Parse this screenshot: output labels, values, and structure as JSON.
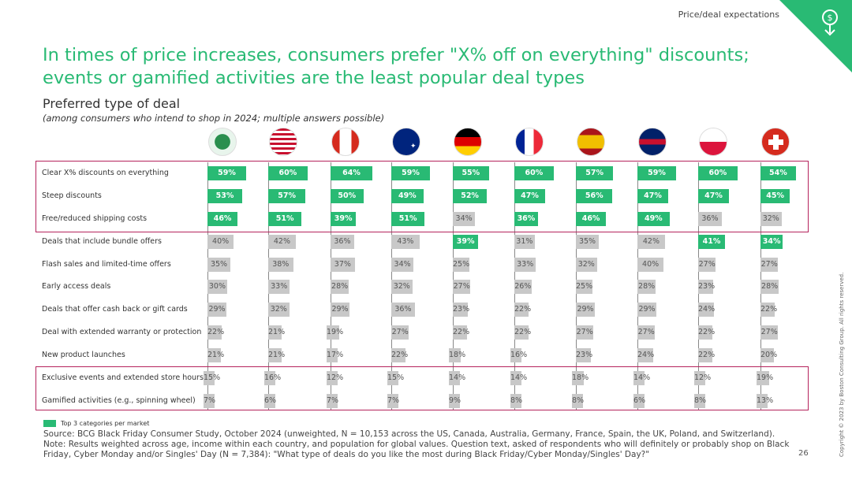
{
  "header": {
    "section": "Price/deal expectations",
    "icon": "dollar-tag-icon"
  },
  "title": "In times of price increases, consumers prefer \"X% off on everything\" discounts; events or gamified activities are the least popular deal types",
  "subtitle": "Preferred type of deal",
  "subnote": "(among consumers who intend to shop in 2024; multiple answers possible)",
  "colors": {
    "accent": "#29ba74",
    "neutral": "#c8c8c8",
    "box": "#b5235c"
  },
  "chart_data": {
    "type": "table",
    "markets": [
      "Global",
      "US",
      "Canada",
      "Australia",
      "Germany",
      "France",
      "Spain",
      "UK",
      "Poland",
      "Switzerland"
    ],
    "categories": [
      "Clear X% discounts on everything",
      "Steep discounts",
      "Free/reduced shipping costs",
      "Deals that include bundle offers",
      "Flash sales and limited-time offers",
      "Early access deals",
      "Deals that offer cash back or gift cards",
      "Deal with extended warranty or protection",
      "New product launches",
      "Exclusive events and extended store hours",
      "Gamified activities (e.g., spinning wheel)"
    ],
    "values": [
      [
        59,
        60,
        64,
        59,
        55,
        60,
        57,
        59,
        60,
        54
      ],
      [
        53,
        57,
        50,
        49,
        52,
        47,
        56,
        47,
        47,
        45
      ],
      [
        46,
        51,
        39,
        51,
        34,
        36,
        46,
        49,
        36,
        32
      ],
      [
        40,
        42,
        36,
        43,
        39,
        31,
        35,
        42,
        41,
        34
      ],
      [
        35,
        38,
        37,
        34,
        25,
        33,
        32,
        40,
        27,
        27
      ],
      [
        30,
        33,
        28,
        32,
        27,
        26,
        25,
        28,
        23,
        28
      ],
      [
        29,
        32,
        29,
        36,
        23,
        22,
        29,
        29,
        24,
        22
      ],
      [
        22,
        21,
        19,
        27,
        22,
        22,
        27,
        27,
        22,
        27
      ],
      [
        21,
        21,
        17,
        22,
        18,
        16,
        23,
        24,
        22,
        20
      ],
      [
        15,
        16,
        12,
        15,
        14,
        14,
        18,
        14,
        12,
        19
      ],
      [
        7,
        6,
        7,
        7,
        9,
        8,
        8,
        6,
        8,
        13
      ]
    ],
    "top3": [
      [
        1,
        1,
        1,
        1,
        1,
        1,
        1,
        1,
        1,
        1
      ],
      [
        1,
        1,
        1,
        1,
        1,
        1,
        1,
        1,
        1,
        1
      ],
      [
        1,
        1,
        1,
        1,
        0,
        1,
        1,
        1,
        0,
        0
      ],
      [
        0,
        0,
        0,
        0,
        1,
        0,
        0,
        0,
        1,
        1
      ],
      [
        0,
        0,
        0,
        0,
        0,
        0,
        0,
        0,
        0,
        0
      ],
      [
        0,
        0,
        0,
        0,
        0,
        0,
        0,
        0,
        0,
        0
      ],
      [
        0,
        0,
        0,
        0,
        0,
        0,
        0,
        0,
        0,
        0
      ],
      [
        0,
        0,
        0,
        0,
        0,
        0,
        0,
        0,
        0,
        0
      ],
      [
        0,
        0,
        0,
        0,
        0,
        0,
        0,
        0,
        0,
        0
      ],
      [
        0,
        0,
        0,
        0,
        0,
        0,
        0,
        0,
        0,
        0
      ],
      [
        0,
        0,
        0,
        0,
        0,
        0,
        0,
        0,
        0,
        0
      ]
    ],
    "unit": "%"
  },
  "legend": "Top 3 categories per market",
  "source": "Source: BCG Black Friday Consumer Study, October 2024 (unweighted, N = 10,153 across the US, Canada, Australia, Germany, France, Spain, the UK, Poland, and Switzerland).",
  "note": "Note: Results weighted across age, income within each country, and population for global values. Question text, asked of respondents who will definitely or probably shop on Black Friday, Cyber Monday and/or Singles' Day (N = 7,384): \"What type of deals do you like the most during Black Friday/Cyber Monday/Singles' Day?\"",
  "page_number": "26",
  "copyright": "Copyright © 2023 by Boston Consulting Group. All rights reserved."
}
